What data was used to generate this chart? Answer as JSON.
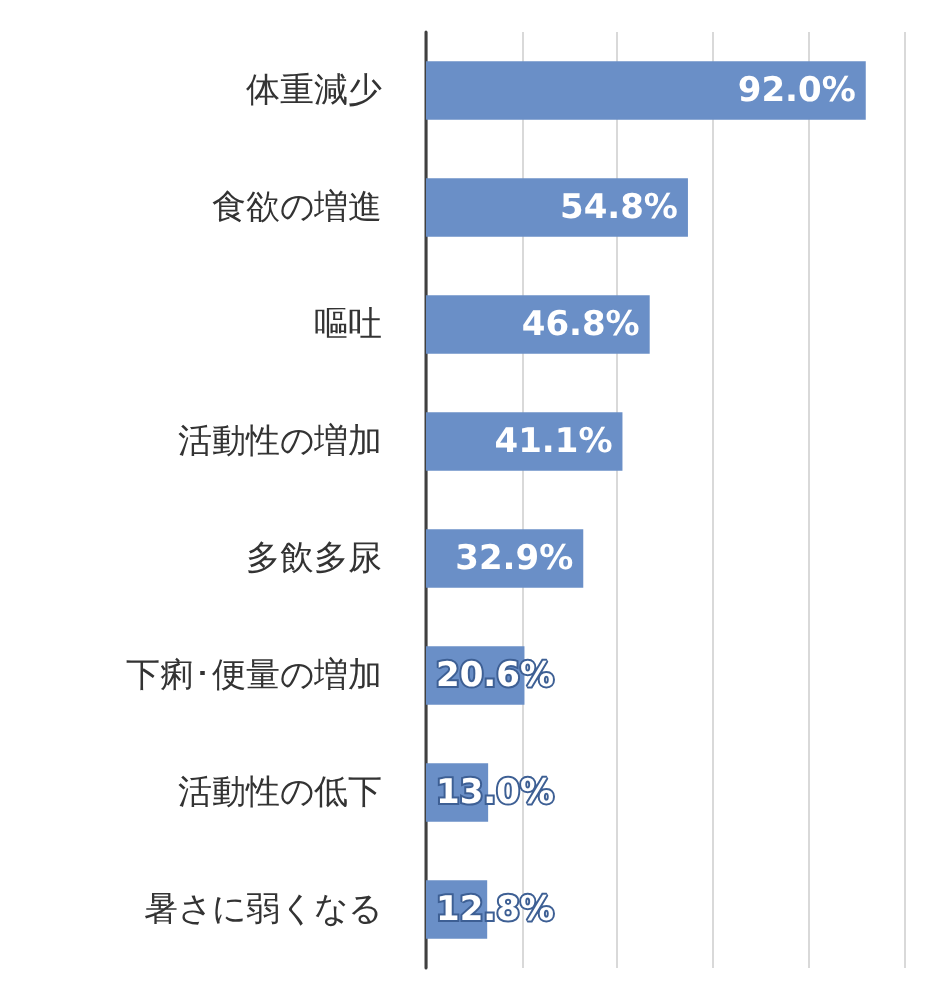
{
  "chart_data": {
    "type": "bar",
    "orientation": "horizontal",
    "categories": [
      "体重減少",
      "食欲の増進",
      "嘔吐",
      "活動性の増加",
      "多飲多尿",
      "下痢･便量の増加",
      "活動性の低下",
      "暑さに弱くなる"
    ],
    "values": [
      92.0,
      54.8,
      46.8,
      41.1,
      32.9,
      20.6,
      13.0,
      12.8
    ],
    "value_labels": [
      "92.0%",
      "54.8%",
      "46.8%",
      "41.1%",
      "32.9%",
      "20.6%",
      "13.0%",
      "12.8%"
    ],
    "color": "#6a8fc7",
    "xlim": [
      0,
      100
    ],
    "xticks": [
      {
        "value": 0,
        "label": null
      },
      {
        "value": 20,
        "label": null
      },
      {
        "value": 40,
        "label": null
      },
      {
        "value": 60,
        "label": null
      },
      {
        "value": 80,
        "label": null
      },
      {
        "value": 100,
        "label": null
      }
    ],
    "grid": "x",
    "tick_labels": "y"
  }
}
